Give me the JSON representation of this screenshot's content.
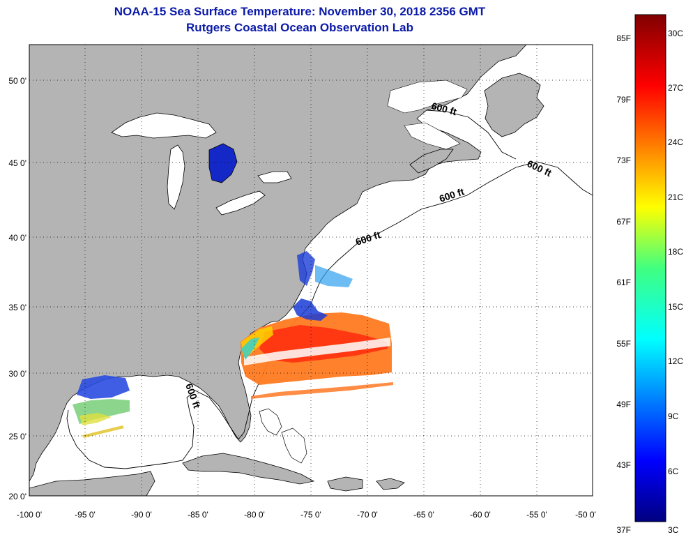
{
  "header": {
    "title": "NOAA-15 Sea Surface Temperature:  November 30, 2018 2356 GMT",
    "subtitle": "Rutgers Coastal Ocean Observation Lab"
  },
  "map": {
    "lon_ticks": [
      "-100 0'",
      "-95 0'",
      "-90 0'",
      "-85 0'",
      "-80 0'",
      "-75 0'",
      "-70 0'",
      "-65 0'",
      "-60 0'",
      "-55 0'",
      "-50 0'"
    ],
    "lat_ticks": [
      "50 0'",
      "45 0'",
      "40 0'",
      "35 0'",
      "30 0'",
      "25 0'",
      "20 0'"
    ],
    "contour_labels": [
      "600 ft",
      "600 ft",
      "600 ft",
      "600 ft",
      "600 ft"
    ],
    "colors": {
      "land": "#b4b4b4",
      "ocean": "#ffffff",
      "grid": "#000000"
    }
  },
  "colorbar": {
    "fahrenheit": [
      "85F",
      "79F",
      "73F",
      "67F",
      "61F",
      "55F",
      "49F",
      "43F",
      "37F"
    ],
    "celsius": [
      "30C",
      "27C",
      "24C",
      "21C",
      "18C",
      "15C",
      "12C",
      "9C",
      "6C",
      "3C"
    ],
    "colors": [
      "#000080",
      "#0000ff",
      "#00ffff",
      "#ffff00",
      "#ff0000",
      "#800000"
    ]
  }
}
